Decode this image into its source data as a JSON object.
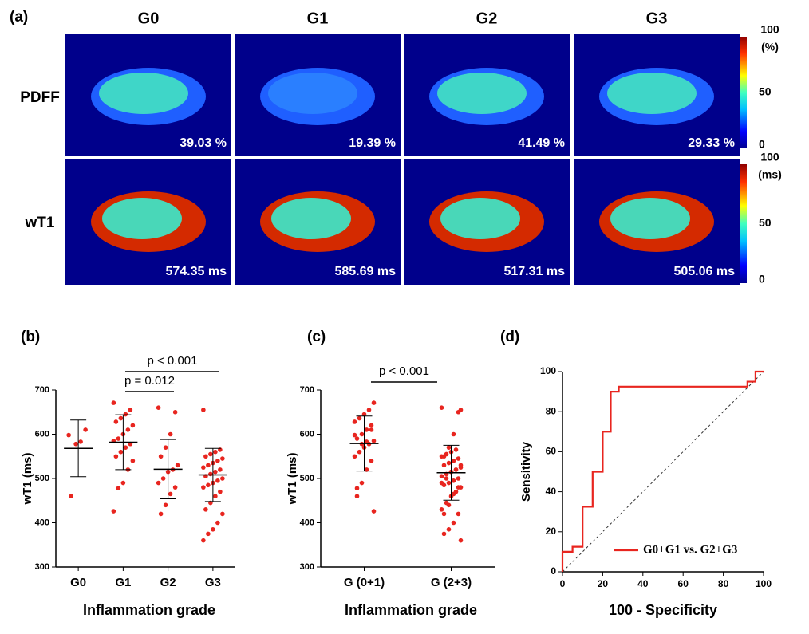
{
  "panel_labels": [
    "(a)",
    "(b)",
    "(c)",
    "(d)"
  ],
  "image_grid": {
    "columns": [
      "G0",
      "G1",
      "G2",
      "G3"
    ],
    "rows": [
      "PDFF",
      "wT1"
    ],
    "cells": [
      [
        "39.03 %",
        "19.39 %",
        "41.49 %",
        "29.33 %"
      ],
      [
        "574.35 ms",
        "585.69 ms",
        "517.31 ms",
        "505.06 ms"
      ]
    ],
    "colorbars": [
      {
        "unit": "(%)",
        "ticks": [
          "100",
          "50",
          "0"
        ]
      },
      {
        "unit": "(ms)",
        "ticks": [
          "100",
          "50",
          "0"
        ]
      }
    ]
  },
  "chart_data": [
    {
      "type": "dot",
      "ylabel": "wT1  (ms)",
      "xlabel": "Inflammation grade",
      "categories": [
        "G0",
        "G1",
        "G2",
        "G3"
      ],
      "color": "#e8251f",
      "groups": [
        [
          598,
          610,
          583,
          578,
          460
        ],
        [
          671,
          655,
          645,
          636,
          628,
          620,
          610,
          600,
          590,
          585,
          578,
          570,
          560,
          550,
          540,
          520,
          490,
          478,
          426
        ],
        [
          660,
          650,
          600,
          570,
          550,
          530,
          520,
          515,
          500,
          490,
          480,
          465,
          440,
          420
        ],
        [
          655,
          565,
          560,
          555,
          550,
          545,
          540,
          535,
          530,
          525,
          520,
          515,
          510,
          505,
          500,
          495,
          490,
          485,
          480,
          470,
          460,
          445,
          430,
          420,
          400,
          385,
          375,
          360
        ]
      ],
      "mean": [
        568,
        582,
        521,
        508
      ],
      "sd": [
        64,
        62,
        67,
        60
      ],
      "ylim": [
        300,
        700
      ],
      "yticks": [
        300,
        400,
        500,
        600,
        700
      ],
      "annotations": [
        "p = 0.012",
        "p < 0.001"
      ]
    },
    {
      "type": "dot",
      "ylabel": "wT1  (ms)",
      "xlabel": "Inflammation grade",
      "categories": [
        "G (0+1)",
        "G (2+3)"
      ],
      "color": "#e8251f",
      "groups": [
        [
          598,
          610,
          583,
          578,
          460,
          671,
          655,
          645,
          636,
          628,
          620,
          610,
          600,
          590,
          585,
          578,
          570,
          560,
          550,
          540,
          520,
          490,
          478,
          426
        ],
        [
          660,
          650,
          600,
          570,
          550,
          530,
          520,
          515,
          500,
          490,
          480,
          465,
          440,
          420,
          655,
          565,
          560,
          555,
          550,
          545,
          540,
          535,
          530,
          525,
          520,
          515,
          510,
          505,
          500,
          495,
          490,
          485,
          480,
          470,
          460,
          445,
          430,
          420,
          400,
          385,
          375,
          360
        ]
      ],
      "mean": [
        579,
        513
      ],
      "sd": [
        62,
        62
      ],
      "ylim": [
        300,
        700
      ],
      "yticks": [
        300,
        400,
        500,
        600,
        700
      ],
      "annotations": [
        "p < 0.001"
      ]
    },
    {
      "type": "line",
      "ylabel": "Sensitivity",
      "xlabel": "100 - Specificity",
      "x": [
        0,
        0,
        5,
        5,
        10,
        10,
        15,
        15,
        20,
        20,
        24,
        24,
        28,
        28,
        92,
        92,
        96,
        96,
        100
      ],
      "series": [
        {
          "name": "G0+G1 vs. G2+G3",
          "color": "#e8251f",
          "values": [
            0,
            10,
            10,
            12.5,
            12.5,
            32.5,
            32.5,
            50,
            50,
            70,
            70,
            90,
            90,
            92.5,
            92.5,
            95,
            95,
            100,
            100
          ]
        }
      ],
      "xlim": [
        0,
        100
      ],
      "xticks": [
        0,
        20,
        40,
        60,
        80,
        100
      ],
      "ylim": [
        0,
        100
      ],
      "yticks": [
        0,
        20,
        40,
        60,
        80,
        100
      ]
    }
  ]
}
